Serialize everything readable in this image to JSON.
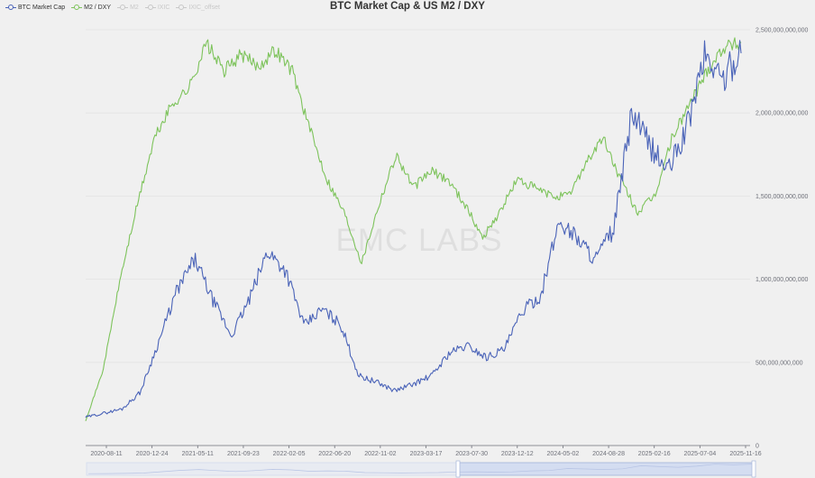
{
  "colors": {
    "btc": "#4a63b8",
    "m2dxy": "#7dc35b",
    "inactive": "#c8c8c8",
    "grid": "#e3e3e3",
    "axis_text": "#6e7079",
    "background": "#f0f0f0",
    "slider_fill": "#c2d1f0"
  },
  "legend": [
    {
      "name": "BTC Market Cap",
      "active": true
    },
    {
      "name": "M2 / DXY",
      "active": true
    },
    {
      "name": "M2",
      "active": false
    },
    {
      "name": "IXIC",
      "active": false
    },
    {
      "name": "IXIC_offset",
      "active": false
    }
  ],
  "watermark": "EMC LABS",
  "chart_data": {
    "type": "line",
    "title": "BTC Market Cap & US M2 / DXY",
    "x_tick_labels": [
      "2020-08-11",
      "2020-12-24",
      "2021-05-11",
      "2021-09-23",
      "2022-02-05",
      "2022-06-20",
      "2022-11-02",
      "2023-03-17",
      "2023-07-30",
      "2023-12-12",
      "2024-05-02",
      "2024-08-28",
      "2025-02-16",
      "2025-07-04",
      "2025-11-16"
    ],
    "y_axis": {
      "position": "right",
      "min": 0,
      "max": 2500000000000,
      "tick_labels": [
        "0",
        "500,000,000,000",
        "1,000,000,000,000",
        "1,500,000,000,000",
        "2,000,000,000,000",
        "2,500,000,000,000"
      ]
    },
    "grid": true,
    "legend_position": "top-left",
    "series": [
      {
        "name": "BTC Market Cap",
        "values": [
          170000000000,
          195000000000,
          220000000000,
          320000000000,
          620000000000,
          930000000000,
          1120000000000,
          870000000000,
          660000000000,
          880000000000,
          1170000000000,
          1050000000000,
          720000000000,
          820000000000,
          730000000000,
          420000000000,
          380000000000,
          330000000000,
          370000000000,
          420000000000,
          560000000000,
          600000000000,
          530000000000,
          580000000000,
          810000000000,
          900000000000,
          1350000000000,
          1250000000000,
          1120000000000,
          1300000000000,
          2000000000000,
          1800000000000,
          1650000000000,
          1900000000000,
          2350000000000,
          2200000000000,
          2380000000000
        ]
      },
      {
        "name": "M2 / DXY",
        "values": [
          150000000000,
          450000000000,
          1000000000000,
          1450000000000,
          1850000000000,
          2050000000000,
          2150000000000,
          2420000000000,
          2250000000000,
          2350000000000,
          2280000000000,
          2380000000000,
          2250000000000,
          1900000000000,
          1600000000000,
          1400000000000,
          1100000000000,
          1450000000000,
          1750000000000,
          1550000000000,
          1650000000000,
          1600000000000,
          1450000000000,
          1250000000000,
          1400000000000,
          1600000000000,
          1550000000000,
          1500000000000,
          1500000000000,
          1700000000000,
          1850000000000,
          1600000000000,
          1400000000000,
          1500000000000,
          1850000000000,
          2050000000000,
          2250000000000,
          2400000000000,
          2420000000000
        ]
      }
    ]
  }
}
